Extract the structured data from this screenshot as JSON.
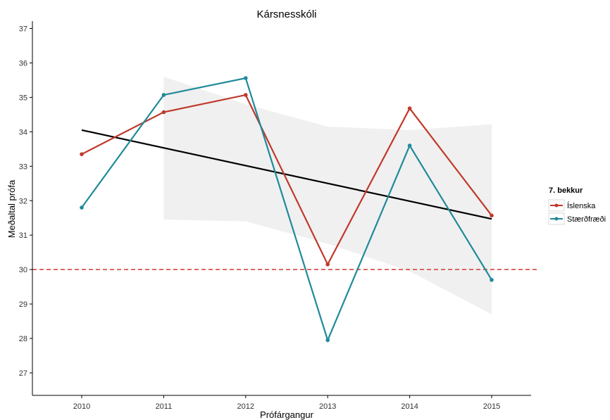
{
  "chart_data": {
    "type": "line",
    "title": "Kársnesskóli",
    "xlabel": "Prófárgangur",
    "ylabel": "Meðaltal prófa",
    "x": [
      "2010",
      "2011",
      "2012",
      "2013",
      "2014",
      "2015"
    ],
    "ylim": [
      26.5,
      37.2
    ],
    "yticks": [
      27,
      28,
      29,
      30,
      31,
      32,
      33,
      34,
      35,
      36,
      37
    ],
    "grid": false,
    "legend": {
      "title": "7. bekkur",
      "position": "right",
      "labels": [
        "Íslenska",
        "Stærðfræði"
      ]
    },
    "series": [
      {
        "name": "Íslenska",
        "color": "#c0392b",
        "values": [
          33.35,
          34.57,
          35.07,
          30.15,
          34.68,
          31.57
        ]
      },
      {
        "name": "Stærðfræði",
        "color": "#1f8a9a",
        "values": [
          31.8,
          35.07,
          35.56,
          27.95,
          33.6,
          29.7
        ]
      }
    ],
    "trend": {
      "color": "#000000",
      "x_range": [
        "2010",
        "2015"
      ],
      "values": [
        34.05,
        31.47
      ],
      "confidence_band": {
        "x": [
          "2011",
          "2012",
          "2013",
          "2014",
          "2015"
        ],
        "upper": [
          35.6,
          34.8,
          34.15,
          34.05,
          34.22
        ],
        "lower": [
          31.45,
          31.4,
          30.75,
          29.95,
          28.7
        ],
        "color": "#f0f0f0"
      }
    },
    "reference_line": {
      "value": 30,
      "color": "#d9534f",
      "style": "dashed"
    }
  }
}
